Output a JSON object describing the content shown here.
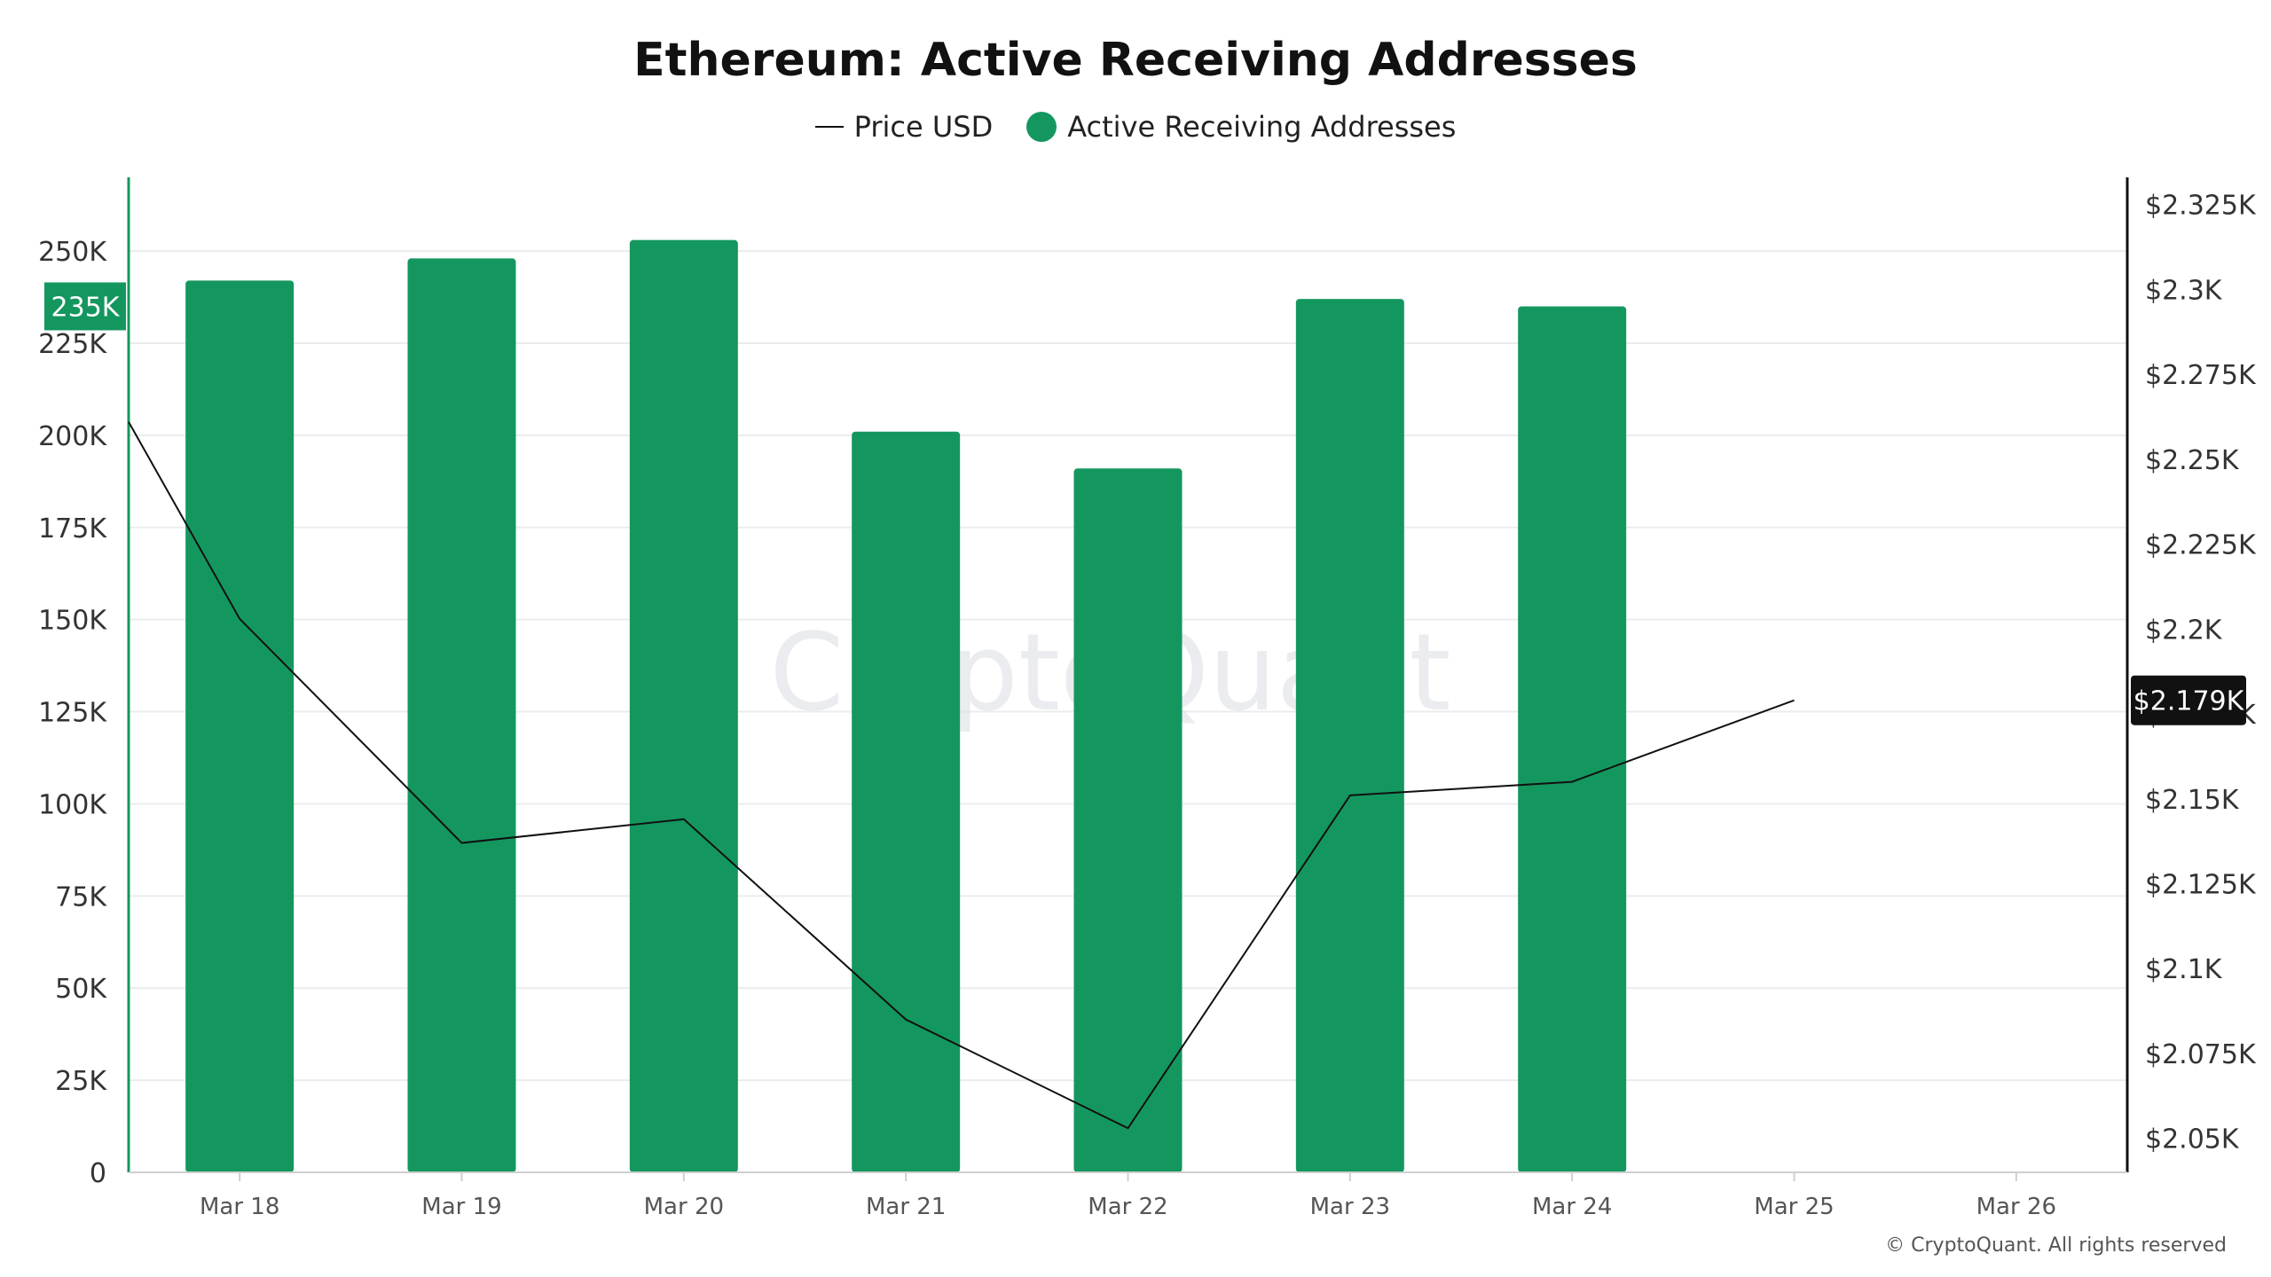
{
  "chart_data": {
    "type": "bar",
    "title": "Ethereum: Active Receiving Addresses",
    "categories": [
      "Mar 18",
      "Mar 19",
      "Mar 20",
      "Mar 21",
      "Mar 22",
      "Mar 23",
      "Mar 24",
      "Mar 25",
      "Mar 26"
    ],
    "series": [
      {
        "name": "Active Receiving Addresses",
        "type": "bar",
        "axis": "left",
        "color": "#14975F",
        "values": [
          242000,
          248000,
          253000,
          201000,
          191000,
          237000,
          235000,
          null,
          null
        ]
      },
      {
        "name": "Price USD",
        "type": "line",
        "axis": "right",
        "color": "#111111",
        "values": [
          2203,
          2137,
          2144,
          2085,
          2053,
          2151,
          2155,
          2179,
          null
        ]
      }
    ],
    "left_axis": {
      "ylim": [
        0,
        270000
      ],
      "ticks": [
        0,
        25000,
        50000,
        75000,
        100000,
        125000,
        150000,
        175000,
        200000,
        225000,
        250000
      ],
      "tick_labels": [
        "0",
        "25K",
        "50K",
        "75K",
        "100K",
        "125K",
        "150K",
        "175K",
        "200K",
        "225K",
        "250K"
      ],
      "current_label": "235K",
      "current_value": 235000
    },
    "right_axis": {
      "ylim": [
        2040,
        2333
      ],
      "ticks": [
        2050,
        2075,
        2100,
        2125,
        2150,
        2175,
        2200,
        2225,
        2250,
        2275,
        2300,
        2325
      ],
      "tick_labels": [
        "$2.05K",
        "$2.075K",
        "$2.1K",
        "$2.125K",
        "$2.15K",
        "$2.175K",
        "$2.2K",
        "$2.225K",
        "$2.25K",
        "$2.275K",
        "$2.3K",
        "$2.325K"
      ],
      "current_label": "$2.179K",
      "current_value": 2179
    },
    "price_start_value": 2261,
    "legend_position": "top-center",
    "grid": true
  },
  "watermark": "CryptoQuant",
  "footer": "© CryptoQuant. All rights reserved",
  "colors": {
    "bar": "#14975F",
    "line": "#111111",
    "grid": "#ececec",
    "axis_left": "#14975F",
    "axis_right": "#111111"
  }
}
